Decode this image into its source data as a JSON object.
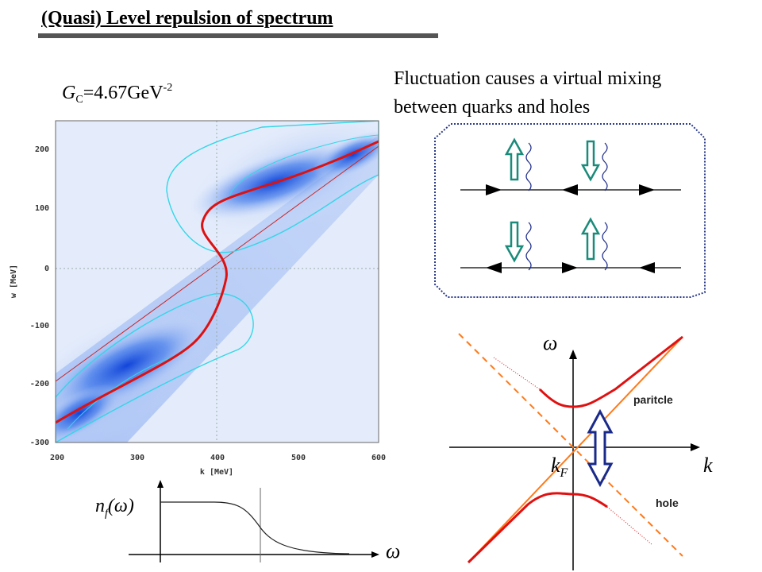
{
  "title": "(Quasi) Level repulsion of spectrum",
  "coupling": {
    "symbol": "G",
    "subscript": "C",
    "value": "=4.67GeV",
    "exponent": "-2"
  },
  "description": {
    "line1": "Fluctuation causes a virtual mixing",
    "line2": "between quarks and holes"
  },
  "spectral_plot": {
    "xlabel": "k [MeV]",
    "ylabel": "w [MeV]",
    "xticks": [
      "200",
      "300",
      "400",
      "500",
      "600"
    ],
    "yticks": [
      "200",
      "100",
      "0",
      "-100",
      "-200",
      "-300"
    ],
    "colors": {
      "density": "#1a5ce6",
      "contour": "#33d6e8",
      "dispersion": "#dd1111",
      "free_line": "#cc2222"
    }
  },
  "occupation_plot": {
    "ylabel_n": "n",
    "ylabel_sub": "f",
    "ylabel_arg": "(ω)",
    "xlabel": "ω"
  },
  "mixing_diagram": {
    "colors": {
      "arrow": "#1a8a7a",
      "border": "#2a3a8a"
    }
  },
  "dispersion_plot": {
    "omega_label": "ω",
    "k_label": "k",
    "kf_label": "k",
    "kf_sub": "F",
    "particle_label": "paritcle",
    "hole_label": "hole",
    "colors": {
      "branch": "#e01010",
      "asymptote": "#ff7a1a",
      "arrow": "#1a2a8a"
    }
  }
}
